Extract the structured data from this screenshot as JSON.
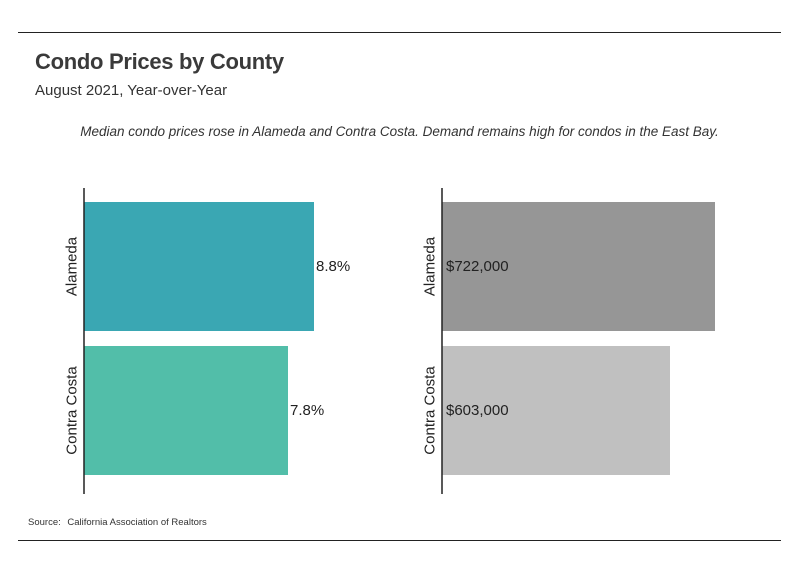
{
  "title": "Condo Prices by County",
  "subtitle": "August 2021, Year-over-Year",
  "note": "Median condo prices rose in Alameda and Contra Costa. Demand remains high for condos in the East Bay.",
  "source": {
    "label": "Source:",
    "text": "California Association of Realtors"
  },
  "chart_data": [
    {
      "type": "bar",
      "orientation": "horizontal",
      "categories": [
        "Alameda",
        "Contra Costa"
      ],
      "values": [
        8.8,
        7.8
      ],
      "labels": [
        "8.8%",
        "7.8%"
      ],
      "colors": [
        "#3aa7b3",
        "#52bea9"
      ],
      "xlim": [
        0,
        12.5
      ]
    },
    {
      "type": "bar",
      "orientation": "horizontal",
      "categories": [
        "Alameda",
        "Contra Costa"
      ],
      "values": [
        722000,
        603000
      ],
      "labels": [
        "$722,000",
        "$603,000"
      ],
      "colors": [
        "#969696",
        "#c0c0c0"
      ],
      "xlim": [
        0,
        750000
      ]
    }
  ]
}
